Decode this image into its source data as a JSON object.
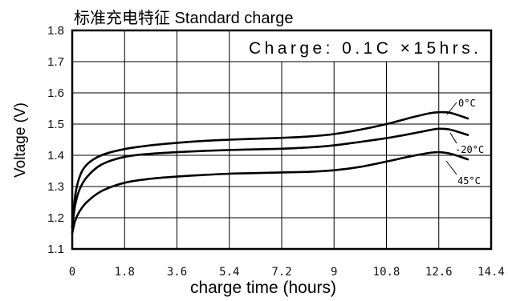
{
  "colors": {
    "lines": "#000000",
    "background": "#ffffff"
  },
  "chart_data": {
    "type": "line",
    "title": "标准充电特征 Standard charge",
    "annotation": "Charge: 0.1C ×15hrs.",
    "xlabel": "charge time (hours)",
    "ylabel": "Voltage (V)",
    "xlim": [
      0,
      14.4
    ],
    "ylim": [
      1.1,
      1.8
    ],
    "xticks": [
      "0",
      "1.8",
      "3.6",
      "5.4",
      "7.2",
      "9",
      "10.8",
      "12.6",
      "14.4"
    ],
    "yticks": [
      "1.8",
      "1.7",
      "1.6",
      "1.5",
      "1.4",
      "1.3",
      "1.2",
      "1.1"
    ],
    "grid": true,
    "x": [
      0,
      0.1,
      0.25,
      0.5,
      1.0,
      1.8,
      2.7,
      3.6,
      4.5,
      5.4,
      6.3,
      7.2,
      8.1,
      9.0,
      9.9,
      10.8,
      11.7,
      12.3,
      12.6,
      13.0,
      13.6
    ],
    "series": [
      {
        "name": "0°C",
        "values": [
          1.17,
          1.27,
          1.33,
          1.37,
          1.4,
          1.42,
          1.432,
          1.44,
          1.446,
          1.45,
          1.453,
          1.456,
          1.46,
          1.468,
          1.482,
          1.5,
          1.522,
          1.535,
          1.538,
          1.536,
          1.518
        ]
      },
      {
        "name": "-20°C",
        "values": [
          1.17,
          1.24,
          1.29,
          1.33,
          1.37,
          1.395,
          1.405,
          1.41,
          1.414,
          1.417,
          1.419,
          1.421,
          1.425,
          1.432,
          1.443,
          1.455,
          1.47,
          1.481,
          1.485,
          1.482,
          1.465
        ]
      },
      {
        "name": "45°C",
        "values": [
          1.15,
          1.19,
          1.22,
          1.25,
          1.285,
          1.312,
          1.325,
          1.332,
          1.337,
          1.341,
          1.343,
          1.345,
          1.347,
          1.352,
          1.363,
          1.38,
          1.398,
          1.408,
          1.41,
          1.405,
          1.387
        ]
      }
    ]
  }
}
